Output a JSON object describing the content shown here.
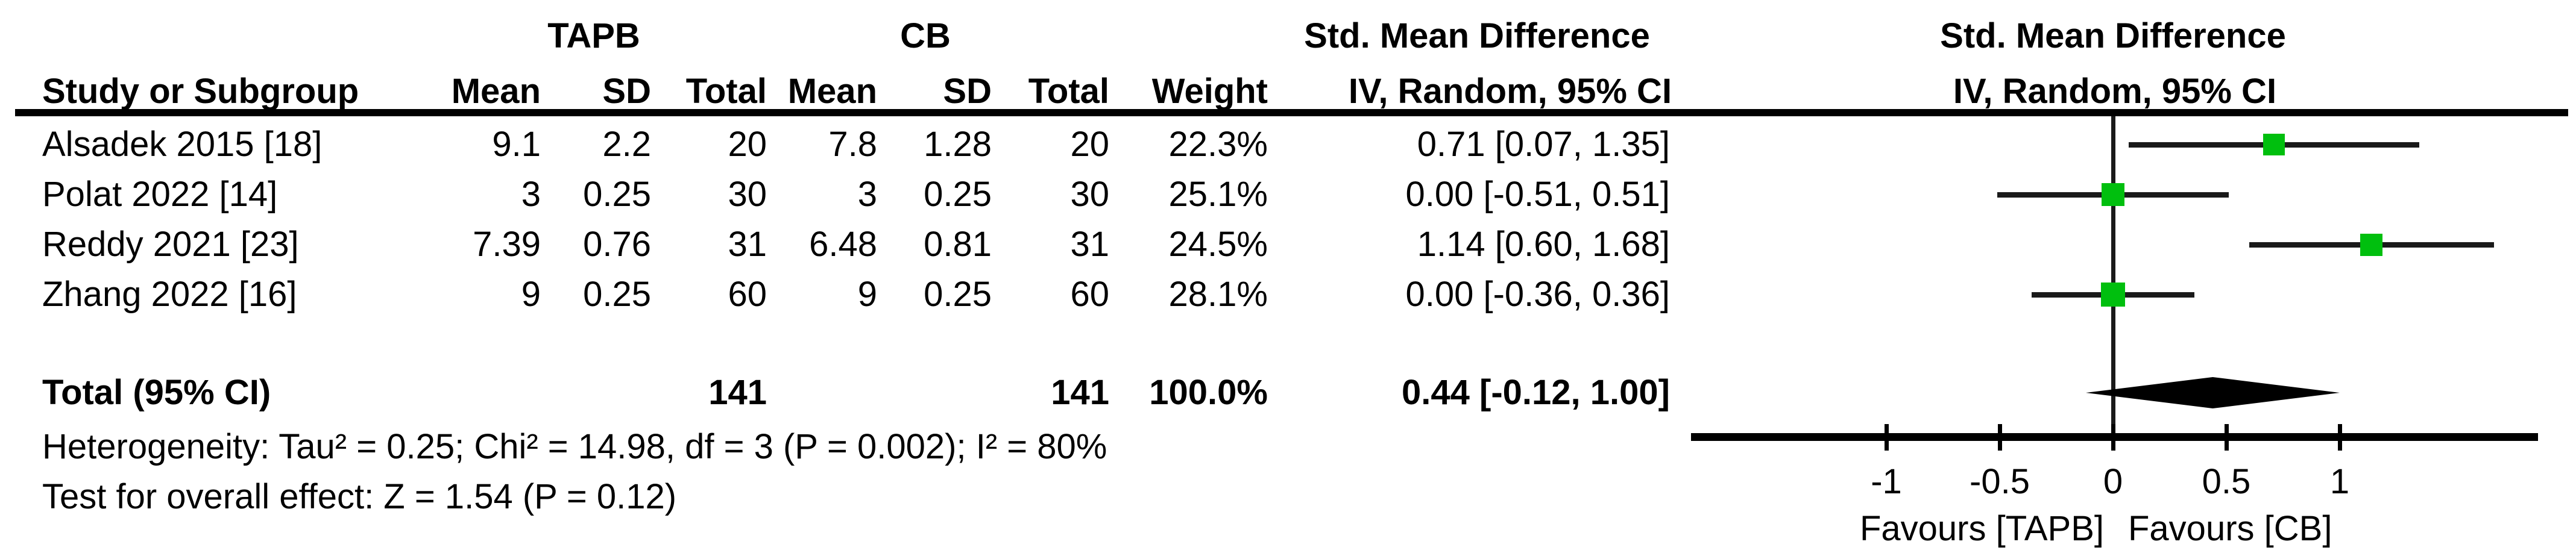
{
  "header": {
    "tapb_group": "TAPB",
    "cb_group": "CB",
    "smd_table": "Std. Mean Difference",
    "smd_plot": "Std. Mean Difference",
    "iv_table": "IV, Random, 95% CI",
    "iv_plot": "IV, Random, 95% CI"
  },
  "columns": {
    "study": "Study or Subgroup",
    "tapb_mean": "Mean",
    "tapb_sd": "SD",
    "tapb_total": "Total",
    "cb_mean": "Mean",
    "cb_sd": "SD",
    "cb_total": "Total",
    "weight": "Weight"
  },
  "rows": [
    {
      "study": "Alsadek 2015 [18]",
      "tapb_mean": "9.1",
      "tapb_sd": "2.2",
      "tapb_total": "20",
      "cb_mean": "7.8",
      "cb_sd": "1.28",
      "cb_total": "20",
      "weight": "22.3%",
      "ci": "0.71 [0.07, 1.35]"
    },
    {
      "study": "Polat 2022 [14]",
      "tapb_mean": "3",
      "tapb_sd": "0.25",
      "tapb_total": "30",
      "cb_mean": "3",
      "cb_sd": "0.25",
      "cb_total": "30",
      "weight": "25.1%",
      "ci": "0.00 [-0.51, 0.51]"
    },
    {
      "study": "Reddy 2021 [23]",
      "tapb_mean": "7.39",
      "tapb_sd": "0.76",
      "tapb_total": "31",
      "cb_mean": "6.48",
      "cb_sd": "0.81",
      "cb_total": "31",
      "weight": "24.5%",
      "ci": "1.14 [0.60, 1.68]"
    },
    {
      "study": "Zhang 2022 [16]",
      "tapb_mean": "9",
      "tapb_sd": "0.25",
      "tapb_total": "60",
      "cb_mean": "9",
      "cb_sd": "0.25",
      "cb_total": "60",
      "weight": "28.1%",
      "ci": "0.00 [-0.36, 0.36]"
    }
  ],
  "total_row": {
    "label": "Total (95% CI)",
    "tapb_total": "141",
    "cb_total": "141",
    "weight": "100.0%",
    "ci": "0.44 [-0.12, 1.00]"
  },
  "footnotes": {
    "heterogeneity": "Heterogeneity: Tau² = 0.25; Chi² = 14.98, df = 3 (P = 0.002); I² = 80%",
    "overall_effect": "Test for overall effect: Z = 1.54 (P = 0.12)"
  },
  "axis_labels": {
    "ticks": [
      "-1",
      "-0.5",
      "0",
      "0.5",
      "1"
    ],
    "favours_left": "Favours [TAPB]",
    "favours_right": "Favours [CB]"
  },
  "colors": {
    "square_green": "#00bf0e",
    "line_black": "#1a1a1a"
  },
  "chart_data": {
    "type": "forest",
    "effect_measure": "Std. Mean Difference",
    "method": "IV, Random, 95% CI",
    "studies": [
      {
        "name": "Alsadek 2015 [18]",
        "smd": 0.71,
        "ci_low": 0.07,
        "ci_high": 1.35,
        "weight_pct": 22.3
      },
      {
        "name": "Polat 2022 [14]",
        "smd": 0.0,
        "ci_low": -0.51,
        "ci_high": 0.51,
        "weight_pct": 25.1
      },
      {
        "name": "Reddy 2021 [23]",
        "smd": 1.14,
        "ci_low": 0.6,
        "ci_high": 1.68,
        "weight_pct": 24.5
      },
      {
        "name": "Zhang 2022 [16]",
        "smd": 0.0,
        "ci_low": -0.36,
        "ci_high": 0.36,
        "weight_pct": 28.1
      }
    ],
    "pooled": {
      "name": "Total (95% CI)",
      "smd": 0.44,
      "ci_low": -0.12,
      "ci_high": 1.0,
      "weight_pct": 100.0
    },
    "totals": {
      "tapb_n": 141,
      "cb_n": 141
    },
    "heterogeneity": {
      "tau2": 0.25,
      "chi2": 14.98,
      "df": 3,
      "p": 0.002,
      "i2_pct": 80
    },
    "overall_effect": {
      "z": 1.54,
      "p": 0.12
    },
    "axis": {
      "ticks": [
        -1,
        -0.5,
        0,
        0.5,
        1
      ],
      "xmin": -1.86,
      "xmax": 1.88,
      "zero_line": true,
      "favours_left": "Favours [TAPB]",
      "favours_right": "Favours [CB]"
    }
  }
}
